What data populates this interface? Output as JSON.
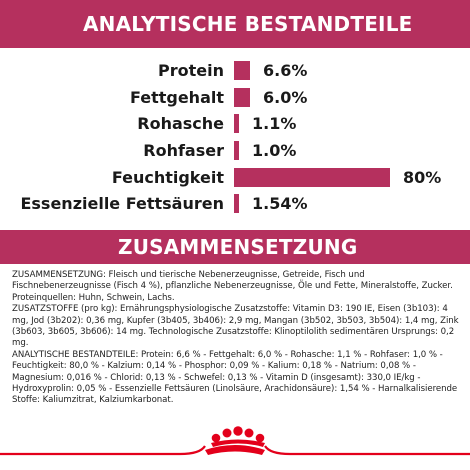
{
  "analysis": {
    "title": "ANALYTISCHE BESTANDTEILE",
    "rows": [
      {
        "label": "Protein",
        "value": "6.6%",
        "fraction": 0.066
      },
      {
        "label": "Fettgehalt",
        "value": "6.0%",
        "fraction": 0.06
      },
      {
        "label": "Rohasche",
        "value": "1.1%",
        "fraction": 0.011
      },
      {
        "label": "Rohfaser",
        "value": "1.0%",
        "fraction": 0.01
      },
      {
        "label": "Feuchtigkeit",
        "value": "80%",
        "fraction": 0.8
      },
      {
        "label": "Essenzielle Fettsäuren",
        "value": "1.54%",
        "fraction": 0.0154
      }
    ]
  },
  "composition": {
    "title": "ZUSAMMENSETZUNG",
    "paragraphs": [
      "ZUSAMMENSETZUNG: Fleisch und tierische Nebenerzeugnisse, Getreide, Fisch und Fischnebenerzeugnisse (Fisch 4 %), pflanzliche Nebenerzeugnisse, Öle und Fette, Mineralstoffe, Zucker. Proteinquellen: Huhn, Schwein, Lachs.",
      "ZUSATZSTOFFE (pro kg): Ernährungsphysiologische Zusatzstoffe: Vitamin D3: 190 IE, Eisen (3b103): 4 mg, Jod (3b202): 0,36 mg, Kupfer (3b405, 3b406): 2,9 mg, Mangan (3b502, 3b503, 3b504): 1,4 mg, Zink (3b603, 3b605, 3b606): 14 mg. Technologische Zusatzstoffe: Klinoptilolith sedimentären Ursprungs: 0,2 mg.",
      "ANALYTISCHE BESTANDTEILE: Protein: 6,6 % - Fettgehalt: 6,0 % - Rohasche: 1,1 % - Rohfaser: 1,0 % - Feuchtigkeit: 80,0 % - Kalzium: 0,14 % - Phosphor: 0,09 % - Kalium: 0,18 % - Natrium: 0,08 % - Magnesium: 0,016 % - Chlorid: 0,13 % - Schwefel: 0,13 % - Vitamin D (insgesamt): 330,0 IE/kg - Hydroxyprolin: 0,05 % - Essenzielle Fettsäuren (Linolsäure, Arachidonsäure): 1,54 % - Harnalkalisierende Stoffe: Kaliumzitrat, Kalziumkarbonat."
    ]
  },
  "footer": {
    "logo_icon": "royal-canin-crown-icon",
    "brand_color": "#e3001b"
  },
  "colors": {
    "accent": "#b5305e"
  }
}
